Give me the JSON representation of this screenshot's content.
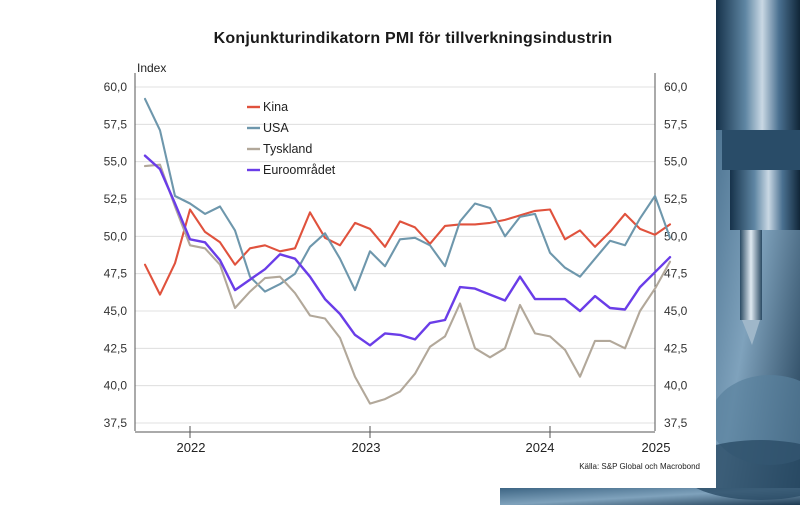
{
  "chart_data": {
    "type": "line",
    "title": "Konjunkturindikatorn PMI för tillverkningsindustrin",
    "ylabel": "Index",
    "source": "Källa: S&P Global och Macrobond",
    "ylim": [
      37.5,
      60.0
    ],
    "y_ticks": [
      "60,0",
      "57,5",
      "55,0",
      "52,5",
      "50,0",
      "47,5",
      "45,0",
      "42,5",
      "40,0",
      "37,5"
    ],
    "y_tick_values": [
      60.0,
      57.5,
      55.0,
      52.5,
      50.0,
      47.5,
      45.0,
      42.5,
      40.0,
      37.5
    ],
    "x_ticks": [
      "2022",
      "2023",
      "2024",
      "2025"
    ],
    "x_start": "2021-10",
    "grid": true,
    "legend_placement": "top-left",
    "series": [
      {
        "name": "Kina",
        "color": "#e0523d",
        "values": [
          48.1,
          46.1,
          48.2,
          51.8,
          50.3,
          49.6,
          48.1,
          49.2,
          49.4,
          49.0,
          49.2,
          51.6,
          49.9,
          49.4,
          50.9,
          50.5,
          49.3,
          51.0,
          50.6,
          49.5,
          50.7,
          50.8,
          50.8,
          50.9,
          51.1,
          51.4,
          51.7,
          51.8,
          49.8,
          50.4,
          49.3,
          50.3,
          51.5,
          50.5,
          50.1,
          50.8
        ]
      },
      {
        "name": "USA",
        "color": "#6e97ac",
        "values": [
          59.2,
          57.1,
          52.7,
          52.2,
          51.5,
          52.0,
          50.4,
          47.3,
          46.3,
          46.8,
          47.5,
          49.3,
          50.2,
          48.5,
          46.4,
          49.0,
          48.0,
          49.8,
          49.9,
          49.4,
          48.0,
          51.0,
          52.2,
          51.9,
          50.0,
          51.3,
          51.5,
          48.9,
          47.9,
          47.3,
          48.5,
          49.7,
          49.4,
          51.2,
          52.7,
          49.9
        ]
      },
      {
        "name": "Tyskland",
        "color": "#b2a89a",
        "values": [
          54.7,
          54.8,
          52.0,
          49.4,
          49.2,
          48.1,
          45.2,
          46.3,
          47.2,
          47.3,
          46.2,
          44.7,
          44.5,
          43.2,
          40.6,
          38.8,
          39.1,
          39.6,
          40.8,
          42.6,
          43.3,
          45.5,
          42.5,
          41.9,
          42.5,
          45.4,
          43.5,
          43.3,
          42.4,
          40.6,
          43.0,
          43.0,
          42.5,
          45.0,
          46.5,
          48.3
        ]
      },
      {
        "name": "Euroområdet",
        "color": "#6a3de8",
        "values": [
          55.4,
          54.5,
          52.2,
          49.8,
          49.6,
          48.4,
          46.4,
          47.1,
          47.8,
          48.8,
          48.5,
          47.3,
          45.8,
          44.8,
          43.4,
          42.7,
          43.5,
          43.4,
          43.1,
          44.2,
          44.4,
          46.6,
          46.5,
          46.1,
          45.7,
          47.3,
          45.8,
          45.8,
          45.8,
          45.0,
          46.0,
          45.2,
          45.1,
          46.6,
          47.6,
          48.6
        ]
      }
    ]
  }
}
